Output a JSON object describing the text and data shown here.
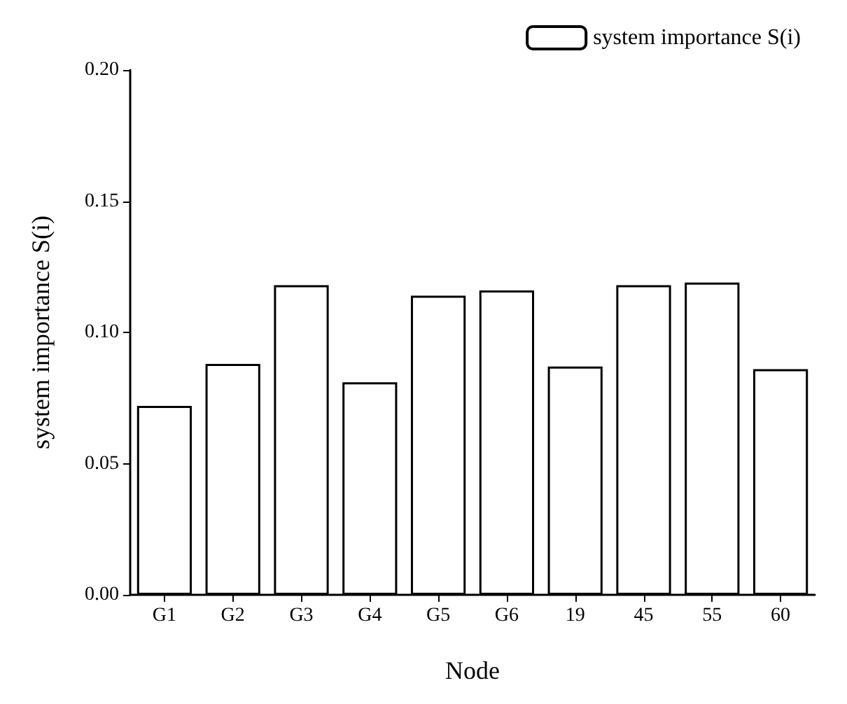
{
  "chart_data": {
    "type": "bar",
    "xlabel": "Node",
    "ylabel": "system importance S(i)",
    "categories": [
      "G1",
      "G2",
      "G3",
      "G4",
      "G5",
      "G6",
      "19",
      "45",
      "55",
      "60"
    ],
    "series": [
      {
        "name": "system importance S(i)",
        "color": "#ffffff",
        "values": [
          0.072,
          0.088,
          0.118,
          0.081,
          0.114,
          0.116,
          0.087,
          0.118,
          0.119,
          0.086
        ]
      }
    ],
    "ylim": [
      0,
      0.2
    ],
    "yticks": [
      {
        "value": 0,
        "label": "0.00"
      },
      {
        "value": 0.05,
        "label": "0.05"
      },
      {
        "value": 0.1,
        "label": "0.10"
      },
      {
        "value": 0.15,
        "label": "0.15"
      },
      {
        "value": 0.2,
        "label": "0.20"
      }
    ],
    "grid": false,
    "legend": "top right"
  }
}
